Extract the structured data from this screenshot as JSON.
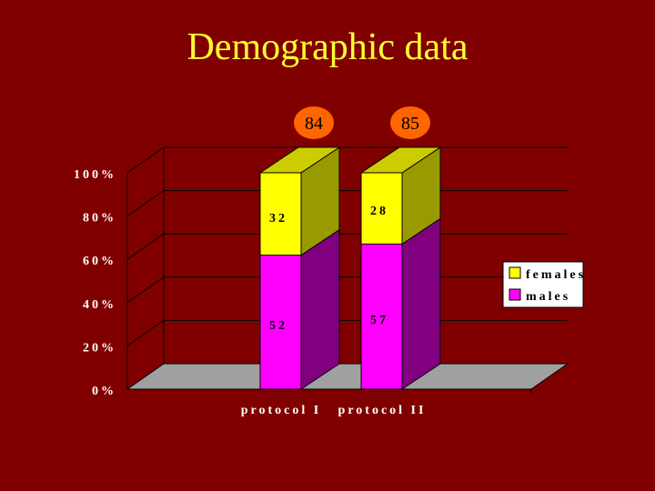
{
  "slide": {
    "title": "Demographic data"
  },
  "colors": {
    "background": "#800000",
    "title": "#ffff33",
    "females_front": "#ffff00",
    "females_side": "#999900",
    "females_top": "#cccc00",
    "males_front": "#ff00ff",
    "males_side": "#800080",
    "floor": "#a0a0a0",
    "badge": "#ff6600"
  },
  "chart_data": {
    "type": "bar",
    "stacked": true,
    "percent_stacked": true,
    "categories": [
      "protocol I",
      "protocol II"
    ],
    "series": [
      {
        "name": "males",
        "values": [
          52,
          57
        ]
      },
      {
        "name": "females",
        "values": [
          32,
          28
        ]
      }
    ],
    "totals": [
      84,
      85
    ],
    "title": "Demographic data",
    "xlabel": "",
    "ylabel": "",
    "y_ticks": [
      "0%",
      "20%",
      "40%",
      "60%",
      "80%",
      "100%"
    ],
    "ylim": [
      0,
      100
    ],
    "legend_position": "right",
    "grid": true
  }
}
